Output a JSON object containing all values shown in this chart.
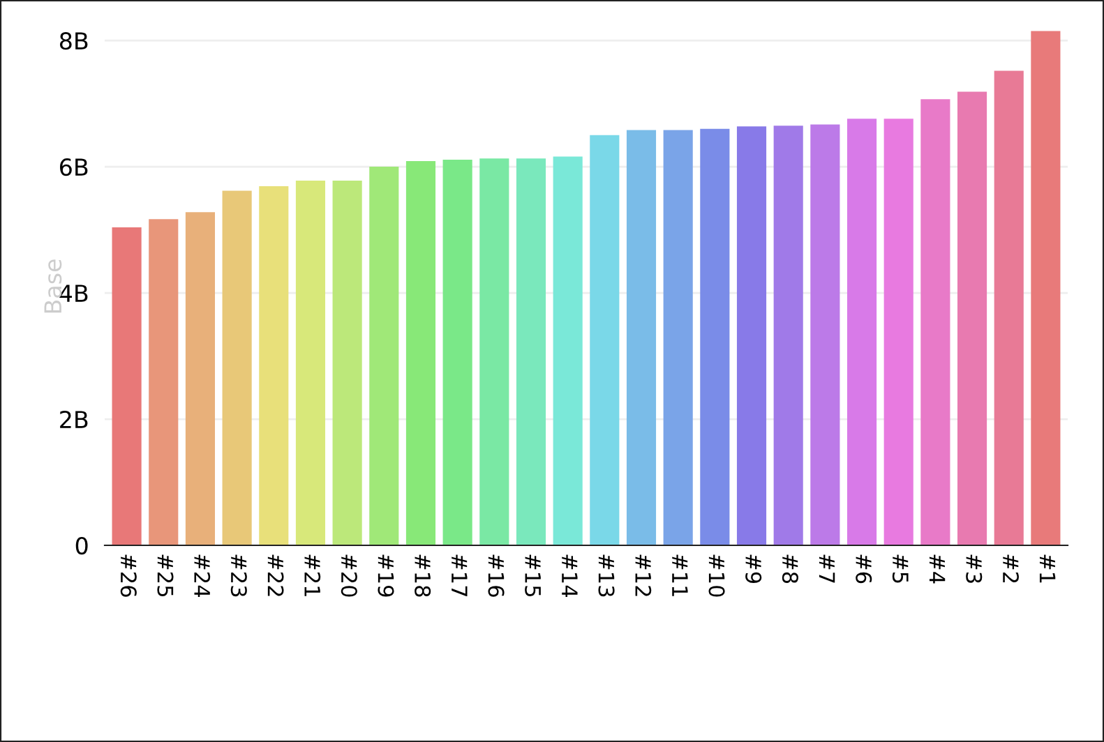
{
  "chart_data": {
    "type": "bar",
    "ylabel": "Base",
    "categories": [
      "#26",
      "#25",
      "#24",
      "#23",
      "#22",
      "#21",
      "#20",
      "#19",
      "#18",
      "#17",
      "#16",
      "#15",
      "#14",
      "#13",
      "#12",
      "#11",
      "#10",
      "#9",
      "#8",
      "#7",
      "#6",
      "#5",
      "#4",
      "#3",
      "#2",
      "#1"
    ],
    "values": [
      5.04,
      5.17,
      5.28,
      5.62,
      5.69,
      5.78,
      5.78,
      6.0,
      6.09,
      6.11,
      6.13,
      6.13,
      6.16,
      6.5,
      6.58,
      6.58,
      6.6,
      6.64,
      6.65,
      6.67,
      6.76,
      6.76,
      7.07,
      7.19,
      7.52,
      8.15
    ],
    "colors": [
      "#e87878",
      "#e8967a",
      "#e8b07a",
      "#e8c878",
      "#e8e07a",
      "#d8e87a",
      "#bce87a",
      "#a0e878",
      "#88e878",
      "#7ae888",
      "#7ae8a4",
      "#7ae8bc",
      "#7ae8d8",
      "#7ad8e8",
      "#7abce8",
      "#7aa4e8",
      "#7a8ce8",
      "#887ae8",
      "#a07ae8",
      "#bc7ae8",
      "#d87ae8",
      "#e87ae0",
      "#e87ac8",
      "#e87ab0",
      "#e87a96",
      "#e87a7a"
    ],
    "ylim": [
      0,
      8.2
    ],
    "yticks": [
      0,
      {
        "value": 2,
        "label": "2B"
      },
      {
        "value": 4,
        "label": "4B"
      },
      {
        "value": 6,
        "label": "6B"
      },
      {
        "value": 8,
        "label": "8B"
      }
    ],
    "grid": "y",
    "legend": false
  }
}
